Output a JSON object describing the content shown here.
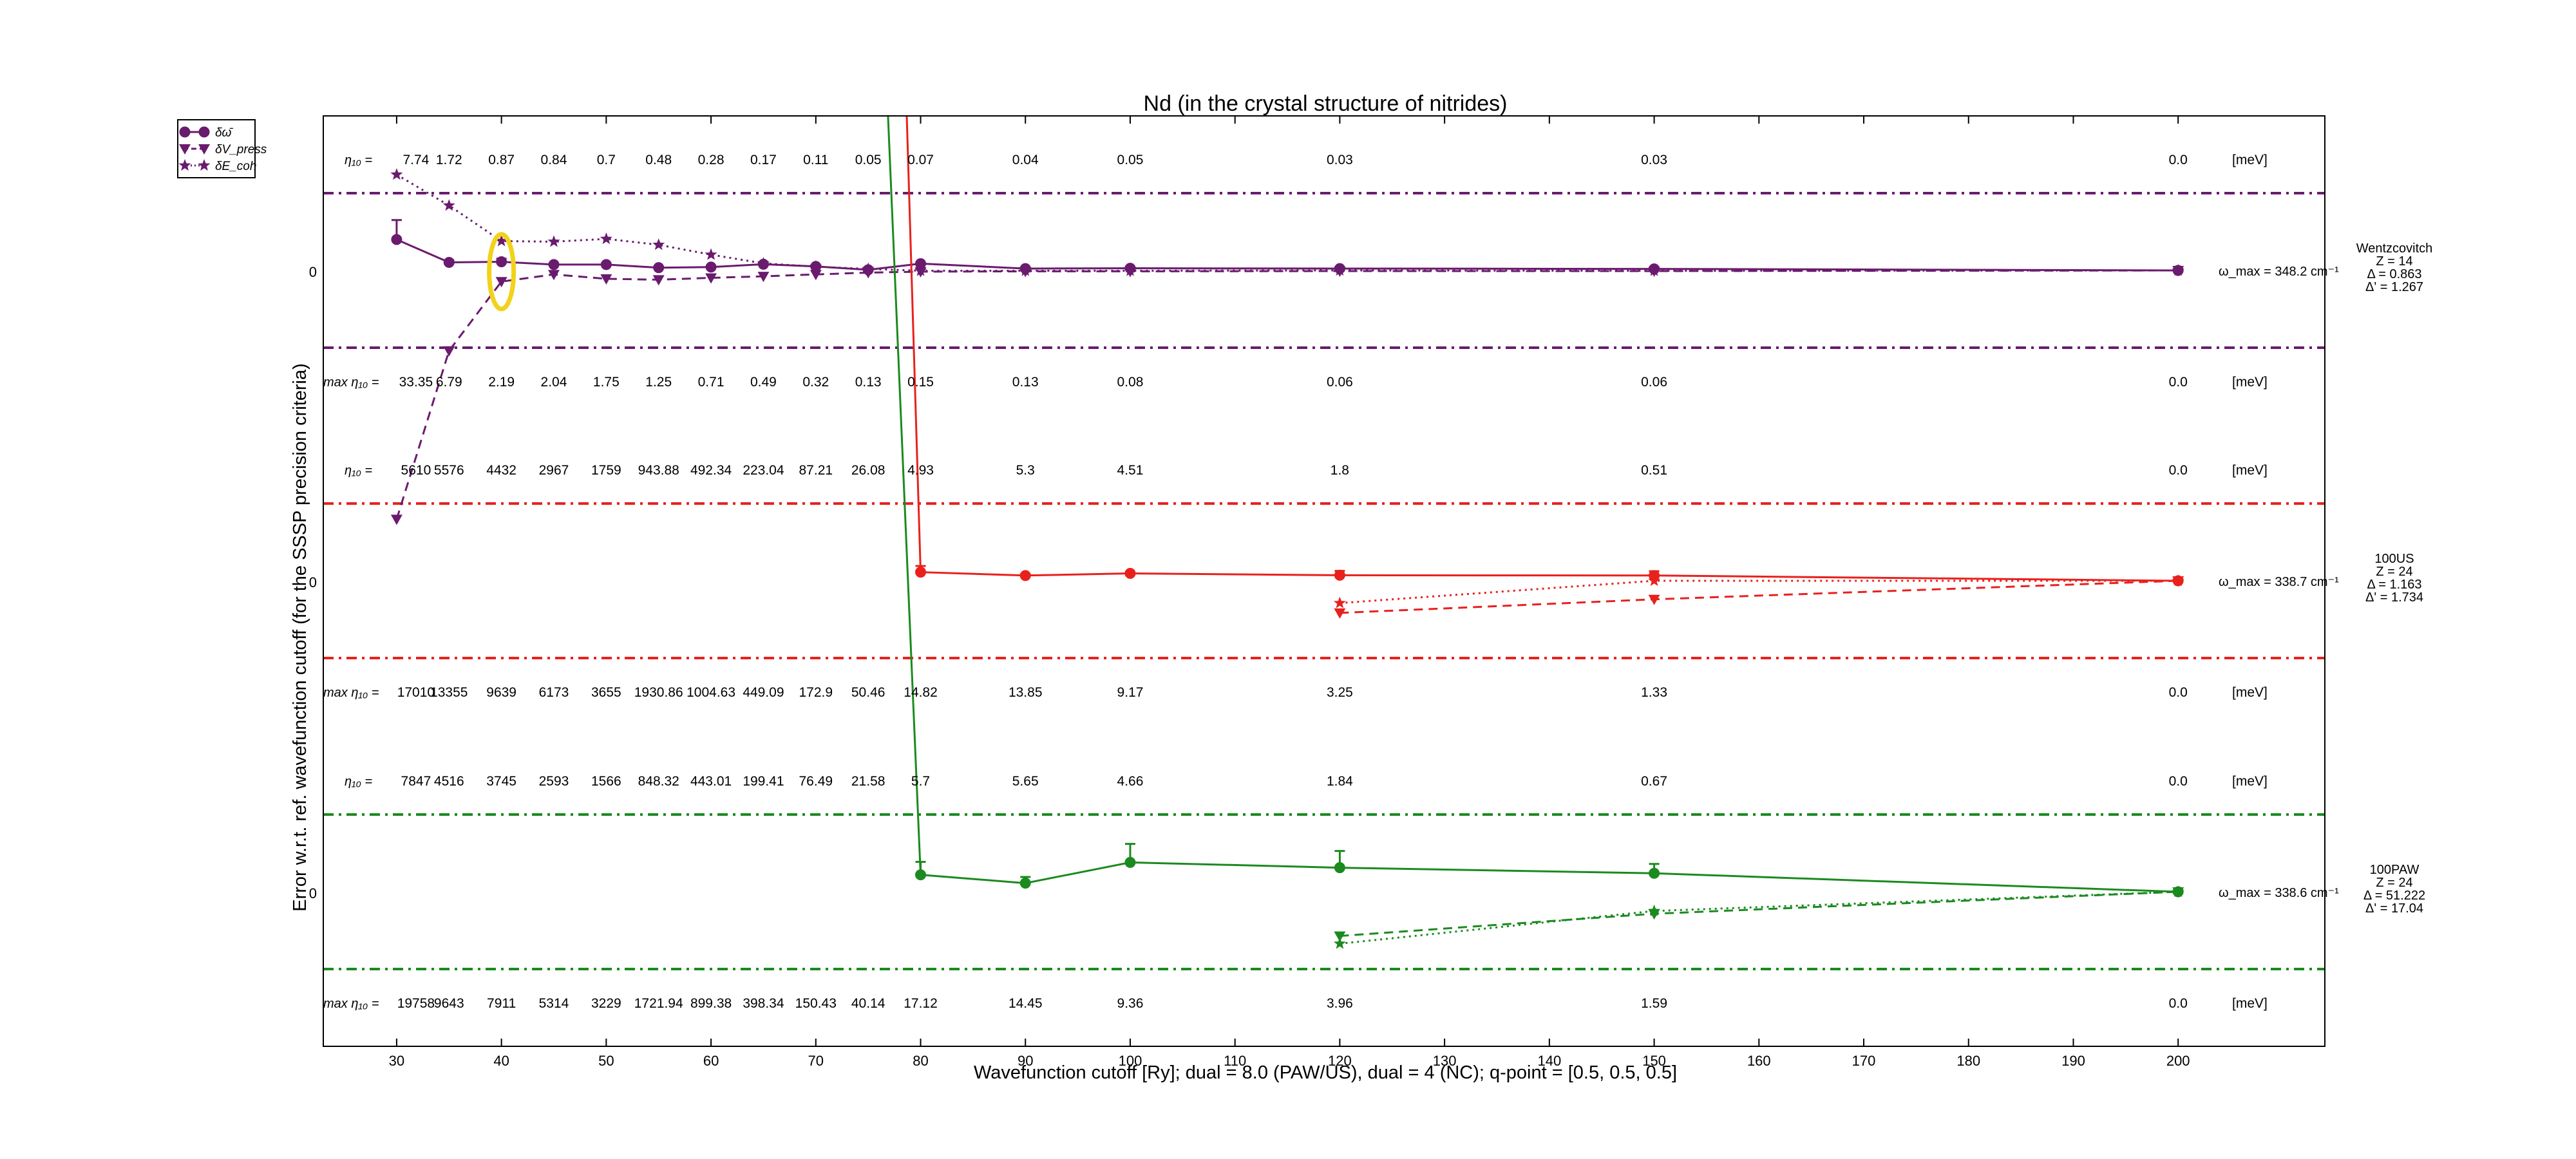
{
  "chart_data": {
    "type": "line",
    "title": "Nd (in the crystal structure of nitrides)",
    "xlabel": "Wavefunction cutoff [Ry]; dual = 8.0 (PAW/US), dual = 4 (NC); q-point = [0.5, 0.5, 0.5]",
    "ylabel": "Error w.r.t. ref. wavefunction cutoff (for the SSSP precision criteria)",
    "xlim": [
      23,
      214
    ],
    "x_ticks": [
      30,
      40,
      50,
      60,
      70,
      80,
      90,
      100,
      110,
      120,
      130,
      140,
      150,
      160,
      170,
      180,
      190,
      200
    ],
    "legend": {
      "position": "top-left, outside",
      "entries": [
        {
          "label": "δω̄",
          "marker": "circle",
          "line": "solid"
        },
        {
          "label": "δV_press",
          "marker": "triangle-down",
          "line": "dashed"
        },
        {
          "label": "δE_coh",
          "marker": "star",
          "line": "dotted"
        }
      ]
    },
    "band_zero_label": "0",
    "unit_label": "[meV]",
    "eta_label": "η₁₀ =",
    "max_eta_label": "max η₁₀ =",
    "panels": [
      {
        "name": "Wentzcovitch",
        "color": "#6a1b6e",
        "info": [
          "Wentzcovitch",
          "Z = 14",
          "Δ = 0.863",
          "Δ' = 1.267"
        ],
        "omega_label": "ω_max = 348.2 cm⁻¹",
        "x": [
          30,
          35,
          40,
          45,
          50,
          55,
          60,
          65,
          70,
          75,
          80,
          90,
          100,
          120,
          150,
          200
        ],
        "phonon": [
          1.0,
          0.26,
          0.28,
          0.19,
          0.19,
          0.09,
          0.11,
          0.2,
          0.13,
          0.02,
          0.22,
          0.06,
          0.07,
          0.06,
          0.05,
          0.0
        ],
        "phonon_err": [
          0.63,
          0.07,
          0.1,
          0.05,
          0.05,
          0.03,
          0.03,
          0.04,
          0.04,
          0.03,
          0.02,
          0.02,
          0.04,
          0.03,
          0.03,
          0.0
        ],
        "press": [
          -8.05,
          -2.6,
          -0.36,
          -0.13,
          -0.27,
          -0.3,
          -0.24,
          -0.19,
          -0.13,
          -0.07,
          -0.04,
          -0.03,
          -0.03,
          -0.02,
          -0.02,
          0.0
        ],
        "coh": [
          3.1,
          2.1,
          0.95,
          0.93,
          1.02,
          0.83,
          0.51,
          0.23,
          0.12,
          0.05,
          -0.01,
          -0.01,
          -0.01,
          0.0,
          -0.01,
          0.0
        ],
        "eta": [
          "7.74",
          "1.72",
          "0.87",
          "0.84",
          "0.7",
          "0.48",
          "0.28",
          "0.17",
          "0.11",
          "0.05",
          "0.07",
          "0.04",
          "0.05",
          "0.03",
          "0.03",
          "0.0"
        ],
        "max_eta": [
          "33.35",
          "6.79",
          "2.19",
          "2.04",
          "1.75",
          "1.25",
          "0.71",
          "0.49",
          "0.32",
          "0.13",
          "0.15",
          "0.13",
          "0.08",
          "0.06",
          "0.06",
          "0.0"
        ]
      },
      {
        "name": "100US",
        "color": "#e8211d",
        "info": [
          "100US",
          "Z = 24",
          "Δ = 1.163",
          "Δ' = 1.734"
        ],
        "omega_label": "ω_max = 338.7 cm⁻¹",
        "x": [
          30,
          35,
          40,
          45,
          50,
          55,
          60,
          65,
          70,
          75,
          80,
          90,
          100,
          120,
          150,
          200
        ],
        "phonon": [
          null,
          null,
          null,
          null,
          null,
          null,
          null,
          71.6,
          60.9,
          56.1,
          0.28,
          0.17,
          0.24,
          0.18,
          0.17,
          0.0
        ],
        "phonon_err": [
          0,
          0,
          0,
          0,
          0,
          0,
          0,
          0,
          0,
          2.0,
          0.2,
          0.05,
          0.05,
          0.14,
          0.14,
          0.0
        ],
        "press": [
          null,
          null,
          null,
          null,
          null,
          null,
          null,
          null,
          null,
          null,
          null,
          null,
          null,
          -1.04,
          -0.6,
          0.0
        ],
        "coh": [
          null,
          null,
          null,
          null,
          null,
          null,
          null,
          null,
          null,
          null,
          null,
          null,
          null,
          -0.72,
          0.0,
          0.0
        ],
        "eta": [
          "5610",
          "5576",
          "4432",
          "2967",
          "1759",
          "943.88",
          "492.34",
          "223.04",
          "87.21",
          "26.08",
          "4.93",
          "5.3",
          "4.51",
          "1.8",
          "0.51",
          "0.0"
        ],
        "max_eta": [
          "17010",
          "13355",
          "9639",
          "6173",
          "3655",
          "1930.86",
          "1004.63",
          "449.09",
          "172.9",
          "50.46",
          "14.82",
          "13.85",
          "9.17",
          "3.25",
          "1.33",
          "0.0"
        ]
      },
      {
        "name": "100PAW",
        "color": "#1b8a1f",
        "info": [
          "100PAW",
          "Z = 24",
          "Δ = 51.222",
          "Δ' = 17.04"
        ],
        "omega_label": "ω_max = 338.6 cm⁻¹",
        "x": [
          30,
          35,
          40,
          45,
          50,
          55,
          60,
          65,
          70,
          75,
          80,
          90,
          100,
          120,
          150,
          200
        ],
        "phonon": [
          null,
          null,
          null,
          null,
          null,
          null,
          null,
          65.0,
          57.0,
          40.0,
          0.55,
          0.28,
          0.95,
          0.78,
          0.6,
          0.0
        ],
        "phonon_err": [
          0,
          0,
          0,
          0,
          0,
          0,
          0,
          0,
          9.0,
          7.3,
          0.42,
          0.2,
          0.6,
          0.54,
          0.3,
          0.0
        ],
        "press": [
          null,
          null,
          null,
          null,
          null,
          null,
          null,
          null,
          null,
          null,
          null,
          null,
          null,
          -1.43,
          -0.71,
          0.0
        ],
        "coh": [
          null,
          null,
          null,
          null,
          null,
          null,
          null,
          null,
          null,
          null,
          null,
          null,
          null,
          -1.68,
          -0.62,
          0.0
        ],
        "eta": [
          "7847",
          "4516",
          "3745",
          "2593",
          "1566",
          "848.32",
          "443.01",
          "199.41",
          "76.49",
          "21.58",
          "5.7",
          "5.65",
          "4.66",
          "1.84",
          "0.67",
          "0.0"
        ],
        "max_eta": [
          "19758",
          "9643",
          "7911",
          "5314",
          "3229",
          "1721.94",
          "899.38",
          "398.34",
          "150.43",
          "40.14",
          "17.12",
          "14.45",
          "9.36",
          "3.96",
          "1.59",
          "0.0"
        ]
      }
    ],
    "highlight": {
      "x": 40,
      "panel": "Wentzcovitch",
      "color": "#f2d21a"
    }
  }
}
